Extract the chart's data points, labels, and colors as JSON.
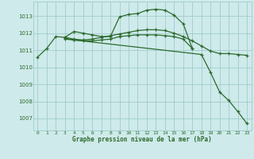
{
  "x": [
    0,
    1,
    2,
    3,
    4,
    5,
    6,
    7,
    8,
    9,
    10,
    11,
    12,
    13,
    14,
    15,
    16,
    17,
    18,
    19,
    20,
    21,
    22,
    23
  ],
  "line1": [
    1010.6,
    1011.1,
    1011.8,
    1011.75,
    1011.65,
    1011.6,
    1011.65,
    1011.75,
    1011.85,
    1011.95,
    1012.05,
    1012.15,
    1012.2,
    1012.2,
    1012.15,
    1012.0,
    1011.8,
    1011.55,
    1011.25,
    1010.95,
    1010.8,
    1010.8,
    1010.75,
    1010.7
  ],
  "line2": [
    null,
    null,
    null,
    1011.75,
    1012.1,
    1012.0,
    1011.9,
    1011.8,
    1011.8,
    1012.95,
    1013.1,
    1013.15,
    1013.35,
    1013.4,
    1013.35,
    1013.05,
    1012.55,
    1011.1,
    null,
    null,
    null,
    null,
    null,
    null
  ],
  "line3": [
    null,
    null,
    null,
    1011.7,
    1011.6,
    1011.55,
    1011.55,
    1011.6,
    1011.65,
    1011.8,
    1011.85,
    1011.9,
    1011.9,
    1011.9,
    1011.85,
    1011.8,
    1011.65,
    1011.1,
    null,
    null,
    null,
    null,
    null,
    null
  ],
  "line4": [
    null,
    null,
    null,
    1011.65,
    1011.6,
    null,
    null,
    null,
    null,
    null,
    null,
    null,
    null,
    null,
    null,
    null,
    null,
    null,
    1010.75,
    1009.7,
    1008.55,
    1008.05,
    1007.4,
    1006.7
  ],
  "ylim": [
    1006.3,
    1013.85
  ],
  "yticks": [
    1007,
    1008,
    1009,
    1010,
    1011,
    1012,
    1013
  ],
  "xtick_labels": [
    "0",
    "1",
    "2",
    "3",
    "4",
    "5",
    "6",
    "7",
    "8",
    "9",
    "10",
    "11",
    "12",
    "13",
    "14",
    "15",
    "16",
    "17",
    "18",
    "19",
    "20",
    "21",
    "22",
    "23"
  ],
  "xlabel": "Graphe pression niveau de la mer (hPa)",
  "line_color": "#2d6a2d",
  "bg_color": "#ceeaea",
  "grid_color": "#a0cccc"
}
